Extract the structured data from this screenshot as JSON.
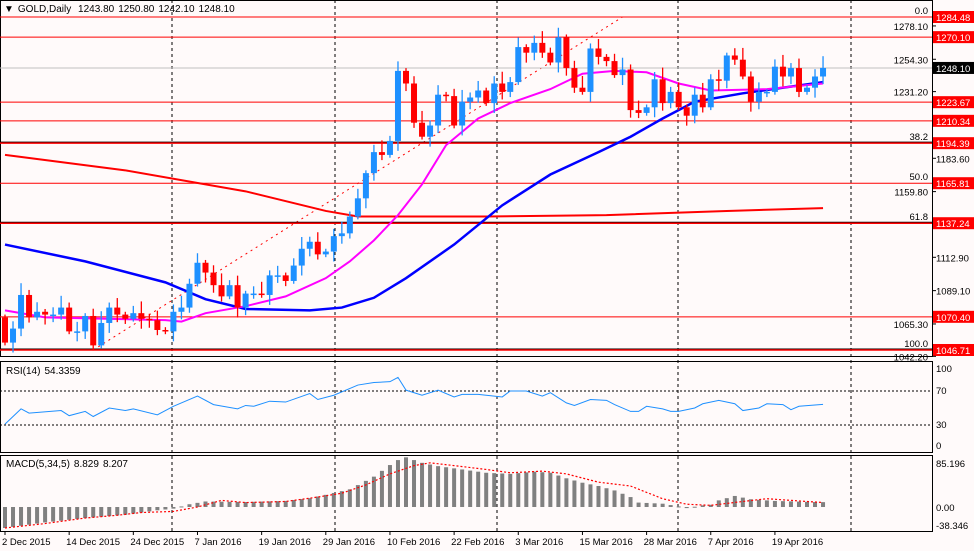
{
  "header": {
    "menu_icon": "triangle-down-icon",
    "symbol": "GOLD,Daily",
    "open": "1243.80",
    "high": "1250.80",
    "low": "1242.10",
    "close": "1248.10"
  },
  "rsi_label": {
    "name": "RSI(14)",
    "value": "54.3359"
  },
  "macd_label": {
    "name": "MACD(5,34,5)",
    "main": "8.829",
    "signal": "8.207"
  },
  "colors": {
    "bg": "#fffafa",
    "bull": "#1e90ff",
    "bear": "#ff0000",
    "ma_fast": "#ff00ff",
    "ma_mid": "#0000ff",
    "ma_slow": "#ff0000",
    "rsi": "#1e90ff",
    "hist": "#808080",
    "signal": "#ff0000"
  },
  "chart_data": [
    {
      "type": "candlestick",
      "title": "GOLD,Daily",
      "x_labels": [
        "2 Dec 2015",
        "14 Dec 2015",
        "24 Dec 2015",
        "7 Jan 2016",
        "19 Jan 2016",
        "29 Jan 2016",
        "10 Feb 2016",
        "22 Feb 2016",
        "3 Mar 2016",
        "15 Mar 2016",
        "28 Mar 2016",
        "7 Apr 2016",
        "19 Apr 2016"
      ],
      "x_label_bars": [
        0,
        8,
        16,
        24,
        32,
        40,
        48,
        56,
        64,
        72,
        80,
        88,
        96
      ],
      "ylim": [
        1040.5,
        1296.5
      ],
      "y_ticks": [
        "1278.10",
        "1254.30",
        "1231.20",
        "1183.60",
        "1159.80",
        "1112.90",
        "1089.10",
        "1065.30",
        "1042.20"
      ],
      "y_tick_values": [
        1278.1,
        1254.3,
        1231.2,
        1183.6,
        1159.8,
        1112.9,
        1089.1,
        1065.3,
        1042.2
      ],
      "first_open": 1070,
      "closes": [
        1052,
        1062,
        1086,
        1070,
        1074,
        1072,
        1072,
        1077,
        1060,
        1060,
        1071,
        1050,
        1066,
        1077,
        1072,
        1069,
        1073,
        1069,
        1068,
        1061,
        1060,
        1074,
        1077,
        1094,
        1109,
        1102,
        1093,
        1085,
        1093,
        1077,
        1087,
        1087,
        1086,
        1100,
        1100,
        1096,
        1107,
        1119,
        1124,
        1115,
        1117,
        1128,
        1130,
        1142,
        1155,
        1173,
        1188,
        1186,
        1196,
        1246,
        1237,
        1209,
        1199,
        1207,
        1229,
        1228,
        1207,
        1224,
        1227,
        1232,
        1223,
        1237,
        1231,
        1238,
        1263,
        1259,
        1266,
        1259,
        1252,
        1270,
        1248,
        1234,
        1231,
        1262,
        1256,
        1253,
        1243,
        1247,
        1218,
        1216,
        1220,
        1240,
        1223,
        1231,
        1220,
        1214,
        1229,
        1220,
        1240,
        1239,
        1257,
        1254,
        1242,
        1224,
        1231,
        1231,
        1249,
        1242,
        1248,
        1231,
        1234,
        1242,
        1248.1
      ],
      "ma_fast": [
        [
          0,
          1075
        ],
        [
          5,
          1070
        ],
        [
          20,
          1068
        ],
        [
          22,
          1067
        ],
        [
          25,
          1073
        ],
        [
          30,
          1078
        ],
        [
          35,
          1085
        ],
        [
          40,
          1098
        ],
        [
          43,
          1110
        ],
        [
          46,
          1125
        ],
        [
          49,
          1143
        ],
        [
          52,
          1165
        ],
        [
          55,
          1193
        ],
        [
          59,
          1212
        ],
        [
          63,
          1223
        ],
        [
          68,
          1233
        ],
        [
          72,
          1244
        ],
        [
          76,
          1246
        ],
        [
          80,
          1245
        ],
        [
          84,
          1237
        ],
        [
          88,
          1232
        ],
        [
          95,
          1233
        ],
        [
          102,
          1237
        ]
      ],
      "ma_mid": [
        [
          0,
          1122
        ],
        [
          10,
          1110
        ],
        [
          20,
          1095
        ],
        [
          25,
          1083
        ],
        [
          30,
          1076
        ],
        [
          38,
          1075
        ],
        [
          42,
          1077
        ],
        [
          46,
          1084
        ],
        [
          50,
          1098
        ],
        [
          56,
          1122
        ],
        [
          62,
          1150
        ],
        [
          68,
          1172
        ],
        [
          74,
          1188
        ],
        [
          78,
          1199
        ],
        [
          82,
          1212
        ],
        [
          86,
          1224
        ],
        [
          92,
          1230
        ],
        [
          102,
          1238
        ]
      ],
      "ma_slow": [
        [
          0,
          1186
        ],
        [
          15,
          1175
        ],
        [
          30,
          1160
        ],
        [
          40,
          1146
        ],
        [
          44,
          1142
        ],
        [
          60,
          1142
        ],
        [
          75,
          1143
        ],
        [
          90,
          1146
        ],
        [
          102,
          1148
        ]
      ],
      "price_levels": [
        "1284.48",
        "1270.10",
        "1223.67",
        "1210.34",
        "1194.39",
        "1165.81",
        "1137.24",
        "1070.40",
        "1046.71"
      ],
      "current_price": "1248.10",
      "fibonacci": {
        "from_bar": 11,
        "from_price": 1046.71,
        "to_bar": 77,
        "to_price": 1284.48,
        "levels": [
          {
            "label": "0.0",
            "price": 1284.48
          },
          {
            "label": "38.2",
            "price": 1194.39
          },
          {
            "label": "50.0",
            "price": 1165.81
          },
          {
            "label": "61.8",
            "price": 1137.24
          },
          {
            "label": "100.0",
            "price": 1046.71
          }
        ]
      }
    },
    {
      "type": "line",
      "title": "RSI(14) 54.3359",
      "ylim": [
        0,
        100
      ],
      "y_ticks": [
        "100",
        "70",
        "30",
        "0"
      ],
      "levels": [
        70,
        30
      ],
      "points": [
        [
          0,
          31
        ],
        [
          2,
          49
        ],
        [
          3,
          44
        ],
        [
          7,
          47
        ],
        [
          8,
          41
        ],
        [
          10,
          46
        ],
        [
          11,
          40
        ],
        [
          13,
          50
        ],
        [
          15,
          47
        ],
        [
          16,
          49
        ],
        [
          19,
          42
        ],
        [
          21,
          52
        ],
        [
          24,
          64
        ],
        [
          26,
          54
        ],
        [
          29,
          49
        ],
        [
          30,
          53
        ],
        [
          31,
          52
        ],
        [
          33,
          58
        ],
        [
          35,
          57
        ],
        [
          38,
          67
        ],
        [
          39,
          60
        ],
        [
          41,
          65
        ],
        [
          44,
          77
        ],
        [
          46,
          80
        ],
        [
          48,
          81
        ],
        [
          49,
          86
        ],
        [
          50,
          71
        ],
        [
          52,
          65
        ],
        [
          54,
          71
        ],
        [
          56,
          63
        ],
        [
          57,
          66
        ],
        [
          59,
          66
        ],
        [
          60,
          65
        ],
        [
          62,
          63
        ],
        [
          63,
          70
        ],
        [
          65,
          70
        ],
        [
          67,
          64
        ],
        [
          68,
          68
        ],
        [
          70,
          56
        ],
        [
          71,
          53
        ],
        [
          73,
          60
        ],
        [
          75,
          59
        ],
        [
          76,
          54
        ],
        [
          78,
          46
        ],
        [
          79,
          46
        ],
        [
          80,
          52
        ],
        [
          82,
          49
        ],
        [
          83,
          46
        ],
        [
          84,
          46
        ],
        [
          86,
          50
        ],
        [
          87,
          55
        ],
        [
          89,
          59
        ],
        [
          91,
          55
        ],
        [
          92,
          47
        ],
        [
          94,
          50
        ],
        [
          95,
          55
        ],
        [
          97,
          54
        ],
        [
          98,
          48
        ],
        [
          99,
          52
        ],
        [
          102,
          54.3
        ]
      ]
    },
    {
      "type": "bar",
      "title": "MACD(5,34,5) 8.829 8.207",
      "ylim": [
        -38.346,
        85.196
      ],
      "y_ticks": [
        "85.196",
        "0.00",
        "-38.346"
      ],
      "histogram": [
        [
          0,
          -38
        ],
        [
          5,
          -28
        ],
        [
          10,
          -20
        ],
        [
          15,
          -14
        ],
        [
          19,
          -6
        ],
        [
          21,
          -3
        ],
        [
          23,
          5
        ],
        [
          25,
          10
        ],
        [
          30,
          9
        ],
        [
          35,
          11
        ],
        [
          38,
          16
        ],
        [
          40,
          22
        ],
        [
          43,
          32
        ],
        [
          46,
          55
        ],
        [
          48,
          76
        ],
        [
          49,
          85
        ],
        [
          50,
          90
        ],
        [
          52,
          80
        ],
        [
          54,
          74
        ],
        [
          57,
          68
        ],
        [
          60,
          62
        ],
        [
          63,
          60
        ],
        [
          66,
          64
        ],
        [
          68,
          62
        ],
        [
          70,
          52
        ],
        [
          72,
          44
        ],
        [
          74,
          38
        ],
        [
          76,
          30
        ],
        [
          78,
          18
        ],
        [
          79,
          8
        ],
        [
          82,
          6
        ],
        [
          84,
          1
        ],
        [
          85,
          -2
        ],
        [
          87,
          3
        ],
        [
          88,
          4
        ],
        [
          89,
          12
        ],
        [
          91,
          20
        ],
        [
          93,
          14
        ],
        [
          96,
          11
        ],
        [
          101,
          9
        ],
        [
          102,
          8.8
        ]
      ],
      "signal": [
        [
          0,
          -38
        ],
        [
          5,
          -30
        ],
        [
          10,
          -20
        ],
        [
          14,
          -15
        ],
        [
          17,
          -10
        ],
        [
          21,
          -8
        ],
        [
          24,
          0
        ],
        [
          27,
          12
        ],
        [
          30,
          8
        ],
        [
          35,
          10
        ],
        [
          39,
          18
        ],
        [
          42,
          25
        ],
        [
          45,
          40
        ],
        [
          48,
          60
        ],
        [
          51,
          75
        ],
        [
          53,
          80
        ],
        [
          56,
          75
        ],
        [
          60,
          68
        ],
        [
          63,
          62
        ],
        [
          67,
          65
        ],
        [
          70,
          60
        ],
        [
          74,
          45
        ],
        [
          78,
          38
        ],
        [
          82,
          15
        ],
        [
          85,
          5
        ],
        [
          88,
          3
        ],
        [
          92,
          10
        ],
        [
          95,
          15
        ],
        [
          100,
          10
        ],
        [
          102,
          8.2
        ]
      ]
    }
  ]
}
